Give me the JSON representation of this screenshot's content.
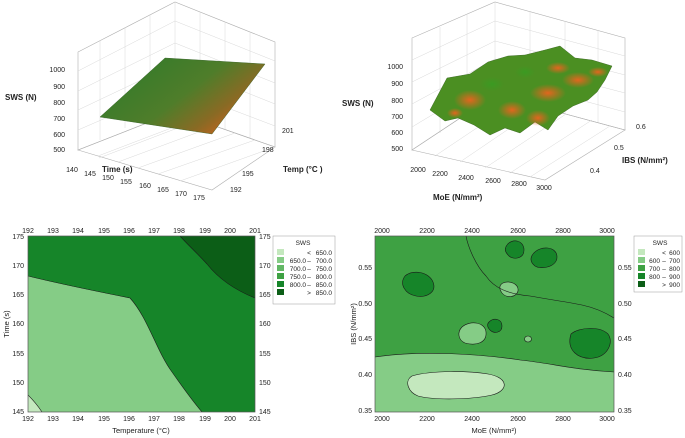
{
  "colors": {
    "lvl1": "#c4e8be",
    "lvl2": "#85cc86",
    "lvl3": "#62b765",
    "lvl4": "#3ea143",
    "lvl5": "#168529",
    "lvl6": "#0c5e17",
    "surface_green": "#3d7a22",
    "surface_orange": "#e0641c"
  },
  "chart_data": [
    {
      "type": "surface3d",
      "id": "surface-temp-time",
      "zlabel": "SWS (N)",
      "xlabel": "Time (s)",
      "ylabel": "Temp (°C )",
      "z_ticks": [
        "1000",
        "900",
        "800",
        "700",
        "600",
        "500"
      ],
      "x_ticks": [
        "140",
        "145",
        "150",
        "155",
        "160",
        "165",
        "170",
        "175"
      ],
      "y_ticks": [
        "192",
        "195",
        "198",
        "201"
      ],
      "zlim": [
        500,
        1000
      ],
      "xlim": [
        140,
        175
      ],
      "ylim": [
        192,
        201
      ]
    },
    {
      "type": "surface3d",
      "id": "surface-moe-ibs",
      "zlabel": "SWS (N)",
      "xlabel": "MoE (N/mm²)",
      "ylabel": "IBS (N/mm²)",
      "z_ticks": [
        "1000",
        "900",
        "800",
        "700",
        "600",
        "500"
      ],
      "x_ticks": [
        "2000",
        "2200",
        "2400",
        "2600",
        "2800",
        "3000"
      ],
      "y_ticks": [
        "0.4",
        "0.5",
        "0.6"
      ],
      "zlim": [
        500,
        1000
      ],
      "xlim": [
        2000,
        3000
      ],
      "ylim": [
        0.35,
        0.6
      ]
    },
    {
      "type": "contour",
      "id": "contour-temp-time",
      "xlabel": "Temperature (°C)",
      "ylabel": "Time (s)",
      "xlim": [
        192,
        201
      ],
      "ylim": [
        145,
        175
      ],
      "x_ticks": [
        "192",
        "193",
        "194",
        "195",
        "196",
        "197",
        "198",
        "199",
        "200",
        "201"
      ],
      "y_ticks": [
        "175",
        "170",
        "165",
        "160",
        "155",
        "150",
        "145"
      ],
      "legend": {
        "title": "SWS",
        "entries": [
          {
            "lo": "",
            "op": "<",
            "hi": "650.0"
          },
          {
            "lo": "650.0",
            "op": "–",
            "hi": "700.0"
          },
          {
            "lo": "700.0",
            "op": "–",
            "hi": "750.0"
          },
          {
            "lo": "750.0",
            "op": "–",
            "hi": "800.0"
          },
          {
            "lo": "800.0",
            "op": "–",
            "hi": "850.0"
          },
          {
            "lo": "",
            "op": ">",
            "hi": "850.0"
          }
        ]
      }
    },
    {
      "type": "contour",
      "id": "contour-moe-ibs",
      "xlabel": "MoE (N/mm²)",
      "ylabel": "IBS (N/mm²)",
      "xlim": [
        2000,
        3000
      ],
      "ylim": [
        0.35,
        0.58
      ],
      "x_ticks": [
        "2000",
        "2200",
        "2400",
        "2600",
        "2800",
        "3000"
      ],
      "y_ticks": [
        "0.55",
        "0.50",
        "0.45",
        "0.40",
        "0.35"
      ],
      "legend": {
        "title": "SWS",
        "entries": [
          {
            "lo": "",
            "op": "<",
            "hi": "600"
          },
          {
            "lo": "600",
            "op": "–",
            "hi": "700"
          },
          {
            "lo": "700",
            "op": "–",
            "hi": "800"
          },
          {
            "lo": "800",
            "op": "–",
            "hi": "900"
          },
          {
            "lo": "",
            "op": ">",
            "hi": "900"
          }
        ]
      }
    }
  ]
}
